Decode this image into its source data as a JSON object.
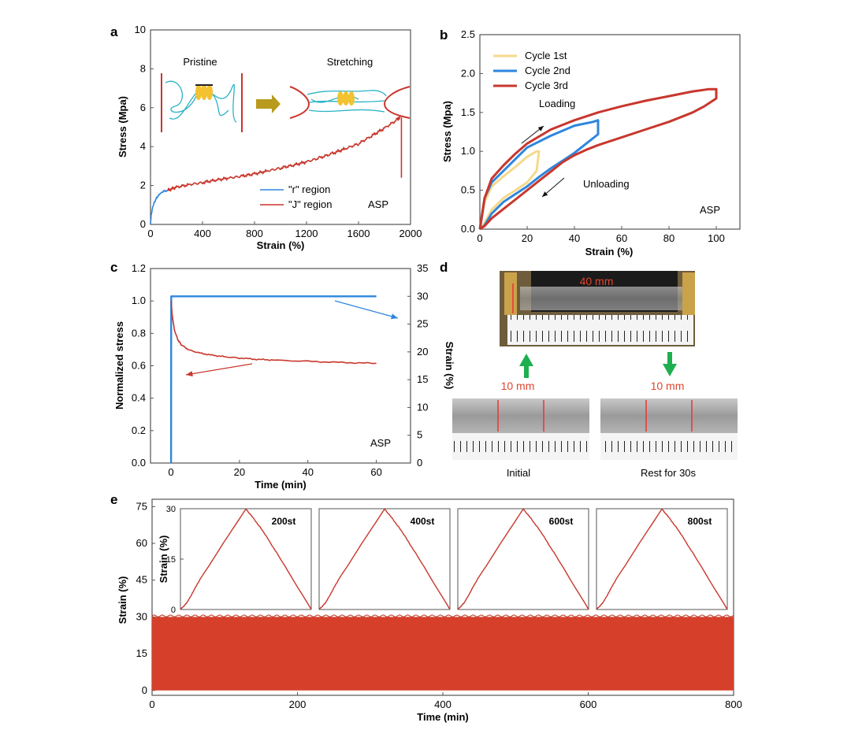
{
  "colors": {
    "blue": "#2E86DE",
    "red": "#C8372D",
    "yellow": "#F5D98A",
    "green": "#1FAF4F",
    "olive": "#B89A1E",
    "cyan": "#2AB3C6",
    "gold": "#F2C230"
  },
  "panels": {
    "a": "a",
    "b": "b",
    "c": "c",
    "d": "d",
    "e": "e"
  },
  "chart_data": [
    {
      "id": "a",
      "type": "line",
      "xlabel": "Strain (%)",
      "ylabel": "Stress (Mpa)",
      "xlim": [
        0,
        2000
      ],
      "ylim": [
        0,
        10
      ],
      "xticks": [
        "0",
        "400",
        "800",
        "1200",
        "1600",
        "2000"
      ],
      "yticks": [
        "0",
        "2",
        "4",
        "6",
        "8",
        "10"
      ],
      "legend": [
        "\"r\" region",
        "\"J\" region"
      ],
      "label": "ASP",
      "schematic": [
        "Pristine",
        "Stretching"
      ],
      "series": [
        {
          "name": "\"r\" region",
          "x": [
            0,
            5,
            15,
            30,
            50,
            75,
            100,
            130
          ],
          "y": [
            0,
            0.45,
            0.85,
            1.15,
            1.4,
            1.58,
            1.7,
            1.75
          ]
        },
        {
          "name": "\"J\" region",
          "x": [
            130,
            200,
            300,
            400,
            500,
            600,
            700,
            800,
            900,
            1000,
            1100,
            1200,
            1300,
            1400,
            1500,
            1600,
            1700,
            1800,
            1900,
            1920
          ],
          "y": [
            1.75,
            1.92,
            2.05,
            2.15,
            2.28,
            2.38,
            2.48,
            2.6,
            2.75,
            2.9,
            3.05,
            3.22,
            3.42,
            3.65,
            3.9,
            4.15,
            4.55,
            4.95,
            5.4,
            5.5
          ],
          "failure": {
            "x": 1930,
            "y_from": 5.5,
            "y_to": 2.4
          }
        }
      ]
    },
    {
      "id": "b",
      "type": "line",
      "xlabel": "Strain (%)",
      "ylabel": "Stress (Mpa)",
      "xlim": [
        0,
        110
      ],
      "ylim": [
        0,
        2.5
      ],
      "xticks": [
        "0",
        "20",
        "40",
        "60",
        "80",
        "100"
      ],
      "yticks": [
        "0.0",
        "0.5",
        "1.0",
        "1.5",
        "2.0",
        "2.5"
      ],
      "legend": [
        "Cycle 1st",
        "Cycle 2nd",
        "Cycle 3rd"
      ],
      "annotations": [
        "Loading",
        "Unloading"
      ],
      "label": "ASP",
      "series": [
        {
          "name": "Cycle 1st",
          "x": [
            0,
            2,
            5,
            10,
            15,
            20,
            24,
            25,
            24,
            20,
            15,
            10,
            5,
            2,
            0
          ],
          "y": [
            0,
            0.35,
            0.55,
            0.68,
            0.8,
            0.93,
            1.0,
            1.0,
            0.75,
            0.6,
            0.5,
            0.4,
            0.25,
            0.08,
            0
          ]
        },
        {
          "name": "Cycle 2nd",
          "x": [
            0,
            2,
            5,
            10,
            15,
            20,
            30,
            40,
            48,
            50,
            50,
            45,
            40,
            35,
            30,
            25,
            20,
            15,
            10,
            5,
            2,
            0
          ],
          "y": [
            0,
            0.4,
            0.6,
            0.75,
            0.9,
            1.05,
            1.2,
            1.33,
            1.38,
            1.4,
            1.22,
            1.1,
            0.98,
            0.88,
            0.78,
            0.67,
            0.55,
            0.45,
            0.35,
            0.2,
            0.05,
            0
          ]
        },
        {
          "name": "Cycle 3rd",
          "x": [
            0,
            2,
            5,
            10,
            15,
            20,
            30,
            40,
            50,
            60,
            70,
            80,
            90,
            97,
            100,
            100,
            95,
            90,
            80,
            70,
            60,
            50,
            45,
            40,
            35,
            30,
            25,
            20,
            15,
            10,
            5,
            2,
            0
          ],
          "y": [
            0,
            0.4,
            0.65,
            0.82,
            0.97,
            1.1,
            1.28,
            1.4,
            1.5,
            1.58,
            1.65,
            1.71,
            1.77,
            1.8,
            1.8,
            1.68,
            1.58,
            1.5,
            1.38,
            1.28,
            1.18,
            1.08,
            1.02,
            0.95,
            0.86,
            0.74,
            0.62,
            0.5,
            0.38,
            0.26,
            0.14,
            0.04,
            0
          ]
        }
      ]
    },
    {
      "id": "c",
      "type": "line",
      "xlabel": "Time (min)",
      "ylabel": "Normalized stress",
      "ylabel_right": "Strain (%)",
      "xlim": [
        -6,
        70
      ],
      "ylim": [
        0,
        1.2
      ],
      "ylim_right": [
        0,
        35
      ],
      "xticks": [
        "0",
        "20",
        "40",
        "60"
      ],
      "yticks": [
        "0.0",
        "0.2",
        "0.4",
        "0.6",
        "0.8",
        "1.0",
        "1.2"
      ],
      "yticks_right": [
        "0",
        "5",
        "10",
        "15",
        "20",
        "25",
        "30",
        "35"
      ],
      "label": "ASP",
      "series": [
        {
          "name": "Strain",
          "axis": "right",
          "x": [
            0,
            0.05,
            60
          ],
          "y": [
            0,
            30,
            30
          ]
        },
        {
          "name": "Normalized stress",
          "axis": "left",
          "x": [
            0.05,
            0.3,
            1,
            2,
            3,
            5,
            8,
            12,
            16,
            20,
            25,
            30,
            40,
            50,
            60
          ],
          "y": [
            1.0,
            0.92,
            0.82,
            0.76,
            0.73,
            0.7,
            0.68,
            0.665,
            0.655,
            0.648,
            0.64,
            0.635,
            0.627,
            0.62,
            0.615
          ]
        }
      ]
    },
    {
      "id": "e",
      "type": "area",
      "xlabel": "Time (min)",
      "ylabel": "Strain (%)",
      "xlim": [
        0,
        800
      ],
      "ylim": [
        -2,
        78
      ],
      "xticks": [
        "0",
        "200",
        "400",
        "600",
        "800"
      ],
      "yticks": [
        "0",
        "15",
        "30",
        "45",
        "60",
        "75"
      ],
      "band": {
        "x_from": 0,
        "x_to": 800,
        "y_from": 0,
        "y_to": 30
      },
      "insets": {
        "ylabel": "Strain (%)",
        "yticks": [
          "0",
          "15",
          "30"
        ],
        "labels": [
          "200st",
          "400st",
          "600st",
          "800st"
        ],
        "cycle_profile": {
          "t": [
            0,
            0.05,
            0.15,
            0.5,
            0.62,
            0.75,
            1.0
          ],
          "y": [
            0,
            2,
            9,
            30,
            24,
            16,
            0
          ]
        }
      }
    }
  ],
  "panel_d": {
    "top_label": "40 mm",
    "left_label": "10 mm",
    "right_label": "10 mm",
    "captions": [
      "Initial",
      "Rest for 30s"
    ]
  }
}
